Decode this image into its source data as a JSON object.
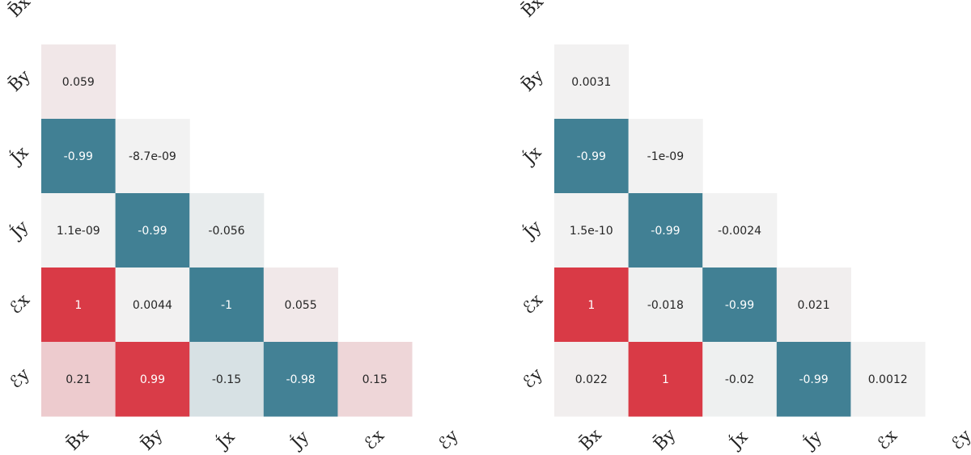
{
  "chart_data": [
    {
      "type": "heatmap",
      "subtype": "lower-triangular correlation matrix",
      "title": "",
      "labels": [
        "B̄x",
        "B̄y",
        "J́x",
        "J́y",
        "ℰx",
        "ℰy"
      ],
      "row_labels": [
        "B̄x",
        "B̄y",
        "J́x",
        "J́y",
        "ℰx",
        "ℰy"
      ],
      "col_labels": [
        "B̄x",
        "B̄y",
        "J́x",
        "J́y",
        "ℰx",
        "ℰy"
      ],
      "value_range": [
        -1,
        1
      ],
      "cells": [
        {
          "row": 1,
          "col": 0,
          "label": "0.059",
          "value": 0.059
        },
        {
          "row": 2,
          "col": 0,
          "label": "-0.99",
          "value": -0.99
        },
        {
          "row": 2,
          "col": 1,
          "label": "-8.7e-09",
          "value": -8.7e-09
        },
        {
          "row": 3,
          "col": 0,
          "label": "1.1e-09",
          "value": 1.1e-09
        },
        {
          "row": 3,
          "col": 1,
          "label": "-0.99",
          "value": -0.99
        },
        {
          "row": 3,
          "col": 2,
          "label": "-0.056",
          "value": -0.056
        },
        {
          "row": 4,
          "col": 0,
          "label": "1",
          "value": 1
        },
        {
          "row": 4,
          "col": 1,
          "label": "0.0044",
          "value": 0.0044
        },
        {
          "row": 4,
          "col": 2,
          "label": "-1",
          "value": -1
        },
        {
          "row": 4,
          "col": 3,
          "label": "0.055",
          "value": 0.055
        },
        {
          "row": 5,
          "col": 0,
          "label": "0.21",
          "value": 0.21
        },
        {
          "row": 5,
          "col": 1,
          "label": "0.99",
          "value": 0.99
        },
        {
          "row": 5,
          "col": 2,
          "label": "-0.15",
          "value": -0.15
        },
        {
          "row": 5,
          "col": 3,
          "label": "-0.98",
          "value": -0.98
        },
        {
          "row": 5,
          "col": 4,
          "label": "0.15",
          "value": 0.15
        }
      ]
    },
    {
      "type": "heatmap",
      "subtype": "lower-triangular correlation matrix",
      "title": "",
      "labels": [
        "B̄x",
        "B̄y",
        "J́x",
        "J́y",
        "ℰx",
        "ℰy"
      ],
      "row_labels": [
        "B̄x",
        "B̄y",
        "J́x",
        "J́y",
        "ℰx",
        "ℰy"
      ],
      "col_labels": [
        "B̄x",
        "B̄y",
        "J́x",
        "J́y",
        "ℰx",
        "ℰy"
      ],
      "value_range": [
        -1,
        1
      ],
      "cells": [
        {
          "row": 1,
          "col": 0,
          "label": "0.0031",
          "value": 0.0031
        },
        {
          "row": 2,
          "col": 0,
          "label": "-0.99",
          "value": -0.99
        },
        {
          "row": 2,
          "col": 1,
          "label": "-1e-09",
          "value": -1e-09
        },
        {
          "row": 3,
          "col": 0,
          "label": "1.5e-10",
          "value": 1.5e-10
        },
        {
          "row": 3,
          "col": 1,
          "label": "-0.99",
          "value": -0.99
        },
        {
          "row": 3,
          "col": 2,
          "label": "-0.0024",
          "value": -0.0024
        },
        {
          "row": 4,
          "col": 0,
          "label": "1",
          "value": 1
        },
        {
          "row": 4,
          "col": 1,
          "label": "-0.018",
          "value": -0.018
        },
        {
          "row": 4,
          "col": 2,
          "label": "-0.99",
          "value": -0.99
        },
        {
          "row": 4,
          "col": 3,
          "label": "0.021",
          "value": 0.021
        },
        {
          "row": 5,
          "col": 0,
          "label": "0.022",
          "value": 0.022
        },
        {
          "row": 5,
          "col": 1,
          "label": "1",
          "value": 1
        },
        {
          "row": 5,
          "col": 2,
          "label": "-0.02",
          "value": -0.02
        },
        {
          "row": 5,
          "col": 3,
          "label": "-0.99",
          "value": -0.99
        },
        {
          "row": 5,
          "col": 4,
          "label": "0.0012",
          "value": 0.0012
        }
      ]
    }
  ],
  "colors": {
    "positive": "#d93a46",
    "negative": "#3f7f93",
    "neutral": "#f2f2f2",
    "text_dark": "#262626",
    "text_light": "#ffffff"
  }
}
